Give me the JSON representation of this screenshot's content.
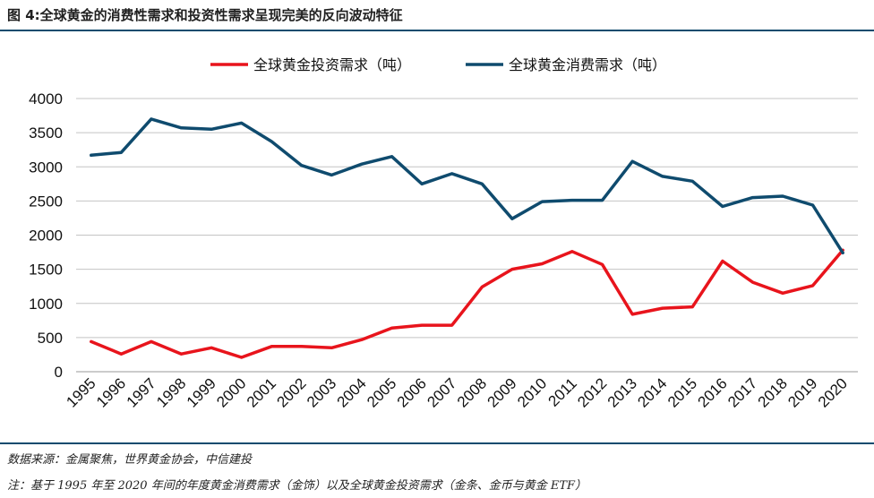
{
  "figure": {
    "title": "图 4:全球黄金的消费性需求和投资性需求呈现完美的反向波动特征",
    "source": "数据来源：金属聚焦，世界黄金协会，中信建投",
    "note": "注：基于 1995 年至 2020 年间的年度黄金消费需求（金饰）以及全球黄金投资需求（金条、金币与黄金 ETF）"
  },
  "chart_data": {
    "type": "line",
    "title": "",
    "xlabel": "",
    "ylabel": "",
    "x": [
      "1995",
      "1996",
      "1997",
      "1998",
      "1999",
      "2000",
      "2001",
      "2002",
      "2003",
      "2004",
      "2005",
      "2006",
      "2007",
      "2008",
      "2009",
      "2010",
      "2011",
      "2012",
      "2013",
      "2014",
      "2015",
      "2016",
      "2017",
      "2018",
      "2019",
      "2020"
    ],
    "ylim": [
      0,
      4000
    ],
    "yticks": [
      0,
      500,
      1000,
      1500,
      2000,
      2500,
      3000,
      3500,
      4000
    ],
    "grid": true,
    "legend_position": "top",
    "series": [
      {
        "name": "全球黄金投资需求（吨）",
        "color": "#e8141c",
        "values": [
          440,
          260,
          440,
          260,
          350,
          210,
          370,
          370,
          350,
          470,
          640,
          680,
          680,
          1240,
          1500,
          1580,
          1760,
          1570,
          840,
          930,
          950,
          1620,
          1310,
          1150,
          1260,
          1780
        ]
      },
      {
        "name": "全球黄金消费需求（吨）",
        "color": "#0f4b6e",
        "values": [
          3170,
          3210,
          3700,
          3570,
          3550,
          3640,
          3370,
          3020,
          2880,
          3040,
          3150,
          2750,
          2900,
          2750,
          2240,
          2490,
          2510,
          2510,
          3080,
          2860,
          2790,
          2420,
          2550,
          2570,
          2440,
          1740
        ]
      }
    ]
  }
}
